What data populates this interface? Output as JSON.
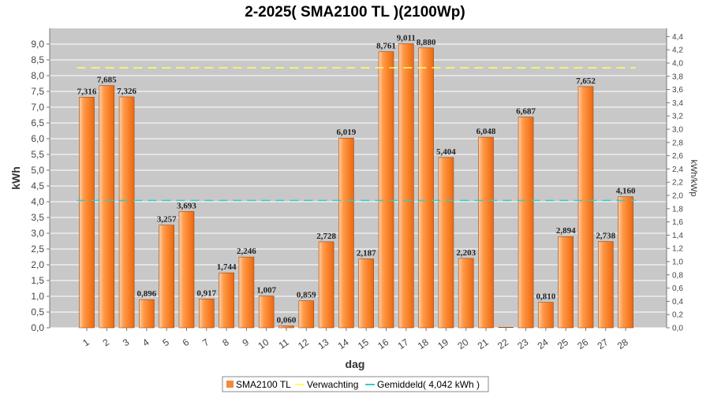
{
  "chart_data": {
    "type": "bar",
    "title": "2-2025( SMA2100 TL )(2100Wp)",
    "xlabel": "dag",
    "ylabel": "kWh",
    "y2label": "kWh/kWp",
    "ylim": [
      0,
      9.5
    ],
    "y2lim": [
      0,
      4.5238
    ],
    "y_ticks": [
      "0,0",
      "0,5",
      "1,0",
      "1,5",
      "2,0",
      "2,5",
      "3,0",
      "3,5",
      "4,0",
      "4,5",
      "5,0",
      "5,5",
      "6,0",
      "6,5",
      "7,0",
      "7,5",
      "8,0",
      "8,5",
      "9,0"
    ],
    "y2_ticks": [
      "0,0",
      "0,2",
      "0,4",
      "0,6",
      "0,8",
      "1,0",
      "1,2",
      "1,4",
      "1,6",
      "1,8",
      "2,0",
      "2,2",
      "2,4",
      "2,6",
      "2,8",
      "3,0",
      "3,2",
      "3,4",
      "3,6",
      "3,8",
      "4,0",
      "4,2",
      "4,4"
    ],
    "grid": true,
    "legend_position": "bottom",
    "categories": [
      "1",
      "2",
      "3",
      "4",
      "5",
      "6",
      "7",
      "8",
      "9",
      "10",
      "11",
      "12",
      "13",
      "14",
      "15",
      "16",
      "17",
      "18",
      "19",
      "20",
      "21",
      "22",
      "23",
      "24",
      "25",
      "26",
      "27",
      "28"
    ],
    "series": [
      {
        "name": "SMA2100 TL",
        "color": "#f5893a",
        "values": [
          7.316,
          7.685,
          7.326,
          0.896,
          3.257,
          3.693,
          0.917,
          1.744,
          2.246,
          1.007,
          0.06,
          0.859,
          2.728,
          6.019,
          2.187,
          8.761,
          9.011,
          8.88,
          5.404,
          2.203,
          6.048,
          0,
          6.687,
          0.81,
          2.894,
          7.652,
          2.738,
          4.16
        ],
        "labels": [
          "7,316",
          "7,685",
          "7,326",
          "0,896",
          "3,257",
          "3,693",
          "0,917",
          "1,744",
          "2,246",
          "1,007",
          "0,060",
          "0,859",
          "2,728",
          "6,019",
          "2,187",
          "8,761",
          "9,011",
          "8,880",
          "5,404",
          "2,203",
          "6,048",
          "",
          "6,687",
          "0,810",
          "2,894",
          "7,652",
          "2,738",
          "4,160"
        ]
      }
    ],
    "lines": [
      {
        "name": "Verwachting",
        "color": "#ffff66",
        "value": 8.25
      },
      {
        "name": "Gemiddeld( 4,042 kWh )",
        "color": "#33cccc",
        "value": 4.042
      }
    ]
  }
}
